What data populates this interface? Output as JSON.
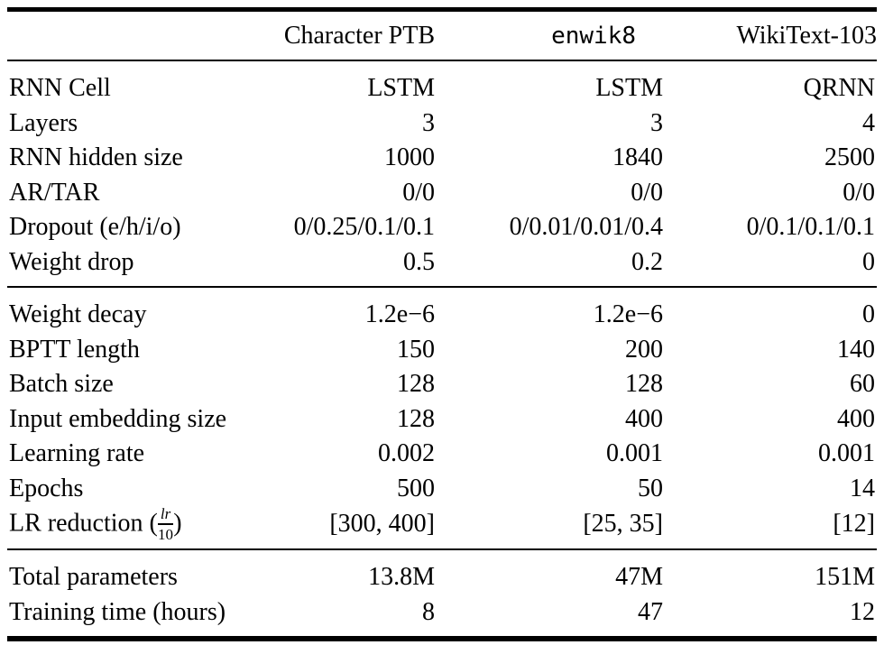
{
  "page": {
    "background": "#ffffff",
    "text_color": "#000000",
    "rule_color": "#000000"
  },
  "table": {
    "corner_label": "",
    "header": {
      "columns": [
        {
          "label": "Character PTB",
          "mono": false
        },
        {
          "label": "enwik8",
          "mono": true
        },
        {
          "label": "WikiText-103",
          "mono": false
        }
      ]
    },
    "sections": [
      {
        "rows": [
          {
            "label": "RNN Cell",
            "values": [
              "LSTM",
              "LSTM",
              "QRNN"
            ]
          },
          {
            "label": "Layers",
            "values": [
              "3",
              "3",
              "4"
            ]
          },
          {
            "label": "RNN hidden size",
            "values": [
              "1000",
              "1840",
              "2500"
            ]
          },
          {
            "label": "AR/TAR",
            "values": [
              "0/0",
              "0/0",
              "0/0"
            ]
          },
          {
            "label": "Dropout (e/h/i/o)",
            "values": [
              "0/0.25/0.1/0.1",
              "0/0.01/0.01/0.4",
              "0/0.1/0.1/0.1"
            ]
          },
          {
            "label": "Weight drop",
            "values": [
              "0.5",
              "0.2",
              "0"
            ]
          }
        ]
      },
      {
        "rows": [
          {
            "label": "Weight decay",
            "values": [
              "1.2e−6",
              "1.2e−6",
              "0"
            ]
          },
          {
            "label": "BPTT length",
            "values": [
              "150",
              "200",
              "140"
            ]
          },
          {
            "label": "Batch size",
            "values": [
              "128",
              "128",
              "60"
            ]
          },
          {
            "label": "Input embedding size",
            "values": [
              "128",
              "400",
              "400"
            ]
          },
          {
            "label": "Learning rate",
            "values": [
              "0.002",
              "0.001",
              "0.001"
            ]
          },
          {
            "label": "Epochs",
            "values": [
              "500",
              "50",
              "14"
            ]
          },
          {
            "label": "LR reduction ",
            "frac": {
              "open": "(",
              "num": "lr",
              "den": "10",
              "close": ")"
            },
            "values": [
              "[300, 400]",
              "[25, 35]",
              "[12]"
            ]
          }
        ]
      },
      {
        "rows": [
          {
            "label": "Total parameters",
            "values": [
              "13.8M",
              "47M",
              "151M"
            ]
          },
          {
            "label": "Training time (hours)",
            "values": [
              "8",
              "47",
              "12"
            ]
          }
        ]
      }
    ]
  }
}
